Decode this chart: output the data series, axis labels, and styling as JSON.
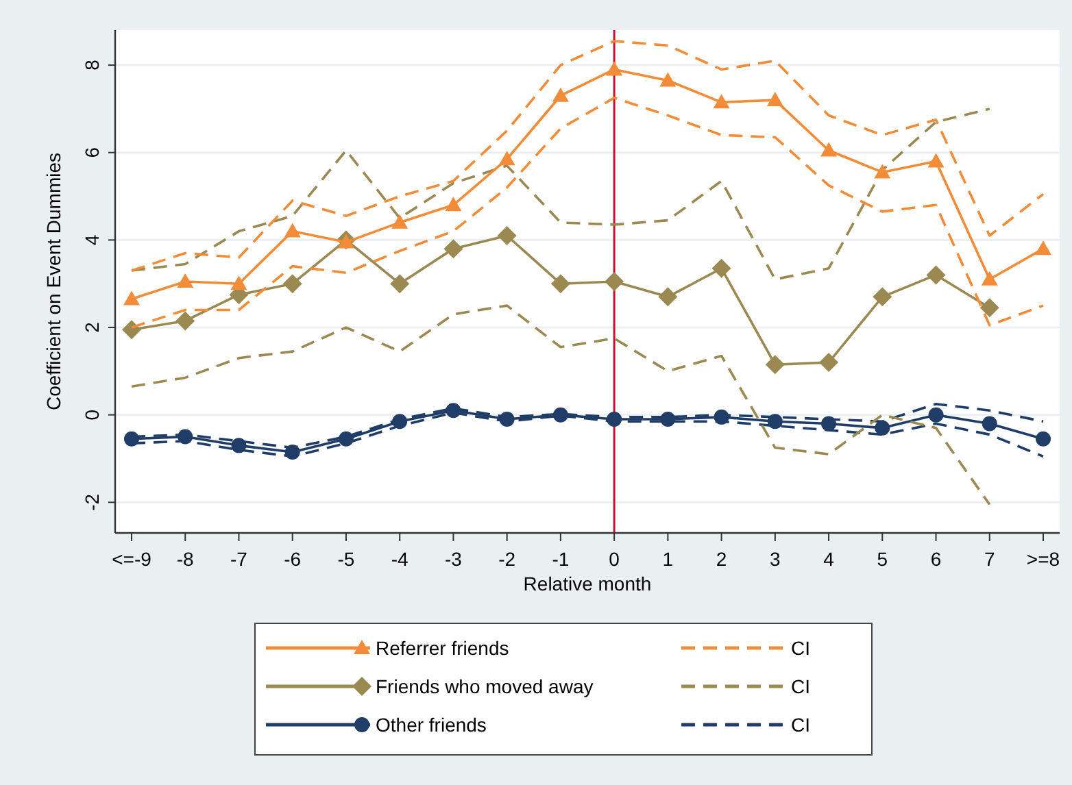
{
  "chart_data": {
    "type": "line",
    "xlabel": "Relative month",
    "ylabel": "Coefficient on Event Dummies",
    "categories": [
      "<=-9",
      "-8",
      "-7",
      "-6",
      "-5",
      "-4",
      "-3",
      "-2",
      "-1",
      "0",
      "1",
      "2",
      "3",
      "4",
      "5",
      "6",
      "7",
      ">=8"
    ],
    "ylim": [
      -2.7,
      8.8
    ],
    "yticks": [
      -2,
      0,
      2,
      4,
      6,
      8
    ],
    "grid": "y",
    "legend": "bottom",
    "ref_lines": [
      {
        "axis": "x",
        "value": "0",
        "color": "#c8102e"
      }
    ],
    "series": [
      {
        "name": "Referrer friends",
        "color": "#f28c38",
        "marker": "triangle",
        "line_style": "solid",
        "values": [
          2.65,
          3.05,
          3.0,
          4.2,
          3.95,
          4.4,
          4.8,
          5.85,
          7.3,
          7.9,
          7.65,
          7.15,
          7.2,
          6.05,
          5.55,
          5.8,
          3.1,
          3.8
        ]
      },
      {
        "name": "CI",
        "color": "#f28c38",
        "marker": "none",
        "line_style": "dashed",
        "values": [
          3.3,
          3.7,
          3.6,
          4.9,
          4.55,
          5.0,
          5.35,
          6.5,
          8.0,
          8.55,
          8.45,
          7.9,
          8.1,
          6.85,
          6.4,
          6.75,
          4.1,
          5.05
        ]
      },
      {
        "color": "#f28c38",
        "marker": "none",
        "line_style": "dashed",
        "values": [
          2.0,
          2.4,
          2.4,
          3.4,
          3.25,
          3.75,
          4.2,
          5.2,
          6.55,
          7.25,
          6.85,
          6.4,
          6.35,
          5.25,
          4.65,
          4.8,
          2.05,
          2.5
        ]
      },
      {
        "name": "Friends who moved away",
        "color": "#9a8a52",
        "marker": "diamond",
        "line_style": "solid",
        "values": [
          1.95,
          2.15,
          2.75,
          3.0,
          4.0,
          3.0,
          3.8,
          4.1,
          3.0,
          3.05,
          2.7,
          3.35,
          1.15,
          1.2,
          2.7,
          3.2,
          2.45,
          null
        ]
      },
      {
        "name": "CI",
        "color": "#9a8a52",
        "marker": "none",
        "line_style": "dashed",
        "values": [
          3.3,
          3.45,
          4.2,
          4.55,
          6.05,
          4.5,
          5.3,
          5.7,
          4.4,
          4.35,
          4.45,
          5.35,
          3.1,
          3.35,
          5.6,
          6.7,
          7.0,
          null
        ]
      },
      {
        "color": "#9a8a52",
        "marker": "none",
        "line_style": "dashed",
        "values": [
          0.65,
          0.85,
          1.3,
          1.45,
          2.0,
          1.45,
          2.3,
          2.5,
          1.55,
          1.75,
          1.0,
          1.35,
          -0.75,
          -0.9,
          0.0,
          -0.3,
          -2.05,
          null
        ]
      },
      {
        "name": "Other friends",
        "color": "#1f3d66",
        "marker": "circle",
        "line_style": "solid",
        "values": [
          -0.55,
          -0.5,
          -0.7,
          -0.85,
          -0.55,
          -0.15,
          0.1,
          -0.1,
          0.0,
          -0.1,
          -0.1,
          -0.05,
          -0.15,
          -0.2,
          -0.3,
          0.0,
          -0.2,
          -0.55
        ]
      },
      {
        "name": "CI",
        "color": "#1f3d66",
        "marker": "none",
        "line_style": "dashed",
        "values": [
          -0.5,
          -0.45,
          -0.6,
          -0.75,
          -0.5,
          -0.1,
          0.15,
          -0.05,
          0.02,
          -0.05,
          -0.05,
          0.0,
          -0.05,
          -0.1,
          -0.15,
          0.25,
          0.1,
          -0.15
        ]
      },
      {
        "color": "#1f3d66",
        "marker": "none",
        "line_style": "dashed",
        "values": [
          -0.65,
          -0.6,
          -0.8,
          -0.95,
          -0.65,
          -0.25,
          0.05,
          -0.15,
          -0.02,
          -0.15,
          -0.15,
          -0.15,
          -0.25,
          -0.35,
          -0.45,
          -0.2,
          -0.45,
          -0.95
        ]
      }
    ]
  }
}
